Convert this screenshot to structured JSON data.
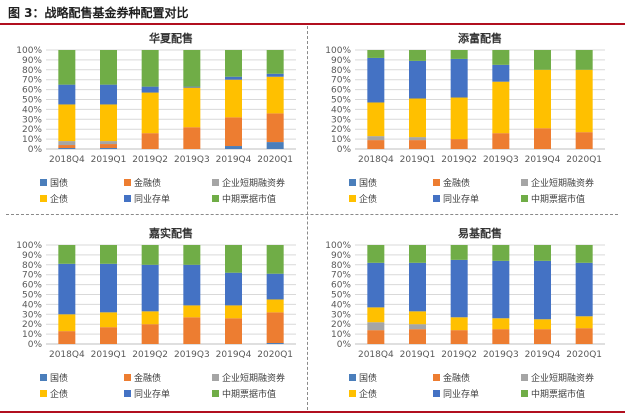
{
  "figure_title": "图 3：战略配售基金券种配置对比",
  "colors": {
    "rule": "#b10f1f",
    "国债": "#4a7ebb",
    "金融债": "#ed7d31",
    "企业短期融资券": "#a5a5a5",
    "企债": "#ffc000",
    "同业存单": "#4472c4",
    "中期票据市值": "#70ad47"
  },
  "chart_data": [
    {
      "type": "bar",
      "stacked": true,
      "title": "华夏配售",
      "categories": [
        "2018Q4",
        "2019Q1",
        "2019Q2",
        "2019Q3",
        "2019Q4",
        "2020Q1"
      ],
      "y_ticks": [
        "0%",
        "10%",
        "20%",
        "30%",
        "40%",
        "50%",
        "60%",
        "70%",
        "80%",
        "90%",
        "100%"
      ],
      "ylim": [
        0,
        100
      ],
      "grid": true,
      "legend_position": "bottom",
      "series": [
        {
          "name": "国债",
          "values": [
            1,
            1,
            0,
            0,
            3,
            7
          ]
        },
        {
          "name": "金融债",
          "values": [
            3,
            4,
            16,
            22,
            29,
            29
          ]
        },
        {
          "name": "企业短期融资券",
          "values": [
            4,
            3,
            0,
            0,
            0,
            0
          ]
        },
        {
          "name": "企债",
          "values": [
            37,
            37,
            41,
            40,
            38,
            37
          ]
        },
        {
          "name": "同业存单",
          "values": [
            20,
            20,
            6,
            1,
            3,
            3
          ]
        },
        {
          "name": "中期票据市值",
          "values": [
            35,
            35,
            37,
            37,
            27,
            24
          ]
        }
      ]
    },
    {
      "type": "bar",
      "stacked": true,
      "title": "添富配售",
      "categories": [
        "2018Q4",
        "2019Q1",
        "2019Q2",
        "2019Q3",
        "2019Q4",
        "2020Q1"
      ],
      "y_ticks": [
        "0%",
        "10%",
        "20%",
        "30%",
        "40%",
        "50%",
        "60%",
        "70%",
        "80%",
        "90%",
        "100%"
      ],
      "ylim": [
        0,
        100
      ],
      "grid": true,
      "legend_position": "bottom",
      "series": [
        {
          "name": "国债",
          "values": [
            0,
            0,
            0,
            0,
            0,
            0
          ]
        },
        {
          "name": "金融债",
          "values": [
            9,
            9,
            10,
            16,
            21,
            17
          ]
        },
        {
          "name": "企业短期融资券",
          "values": [
            4,
            3,
            0,
            0,
            0,
            0
          ]
        },
        {
          "name": "企债",
          "values": [
            34,
            39,
            42,
            52,
            59,
            63
          ]
        },
        {
          "name": "同业存单",
          "values": [
            45,
            38,
            39,
            17,
            0,
            0
          ]
        },
        {
          "name": "中期票据市值",
          "values": [
            8,
            11,
            9,
            15,
            20,
            20
          ]
        }
      ]
    },
    {
      "type": "bar",
      "stacked": true,
      "title": "嘉实配售",
      "categories": [
        "2018Q4",
        "2019Q1",
        "2019Q2",
        "2019Q3",
        "2019Q4",
        "2020Q1"
      ],
      "y_ticks": [
        "0%",
        "10%",
        "20%",
        "30%",
        "40%",
        "50%",
        "60%",
        "70%",
        "80%",
        "90%",
        "100%"
      ],
      "ylim": [
        0,
        100
      ],
      "grid": true,
      "legend_position": "bottom",
      "series": [
        {
          "name": "国债",
          "values": [
            0,
            0,
            0,
            0,
            0,
            1
          ]
        },
        {
          "name": "金融债",
          "values": [
            13,
            17,
            20,
            27,
            26,
            31
          ]
        },
        {
          "name": "企业短期融资券",
          "values": [
            0,
            0,
            0,
            0,
            0,
            0
          ]
        },
        {
          "name": "企债",
          "values": [
            17,
            15,
            13,
            12,
            13,
            13
          ]
        },
        {
          "name": "同业存单",
          "values": [
            51,
            49,
            47,
            41,
            33,
            26
          ]
        },
        {
          "name": "中期票据市值",
          "values": [
            19,
            19,
            20,
            20,
            28,
            29
          ]
        }
      ]
    },
    {
      "type": "bar",
      "stacked": true,
      "title": "易基配售",
      "categories": [
        "2018Q4",
        "2019Q1",
        "2019Q2",
        "2019Q3",
        "2019Q4",
        "2020Q1"
      ],
      "y_ticks": [
        "0%",
        "10%",
        "20%",
        "30%",
        "40%",
        "50%",
        "60%",
        "70%",
        "80%",
        "90%",
        "100%"
      ],
      "ylim": [
        0,
        100
      ],
      "grid": true,
      "legend_position": "bottom",
      "series": [
        {
          "name": "国债",
          "values": [
            0,
            0,
            0,
            0,
            0,
            0
          ]
        },
        {
          "name": "金融债",
          "values": [
            14,
            15,
            14,
            15,
            15,
            16
          ]
        },
        {
          "name": "企业短期融资券",
          "values": [
            8,
            5,
            0,
            0,
            0,
            0
          ]
        },
        {
          "name": "企债",
          "values": [
            15,
            13,
            13,
            11,
            10,
            12
          ]
        },
        {
          "name": "同业存单",
          "values": [
            45,
            49,
            58,
            58,
            59,
            54
          ]
        },
        {
          "name": "中期票据市值",
          "values": [
            18,
            18,
            15,
            16,
            16,
            18
          ]
        }
      ]
    }
  ]
}
